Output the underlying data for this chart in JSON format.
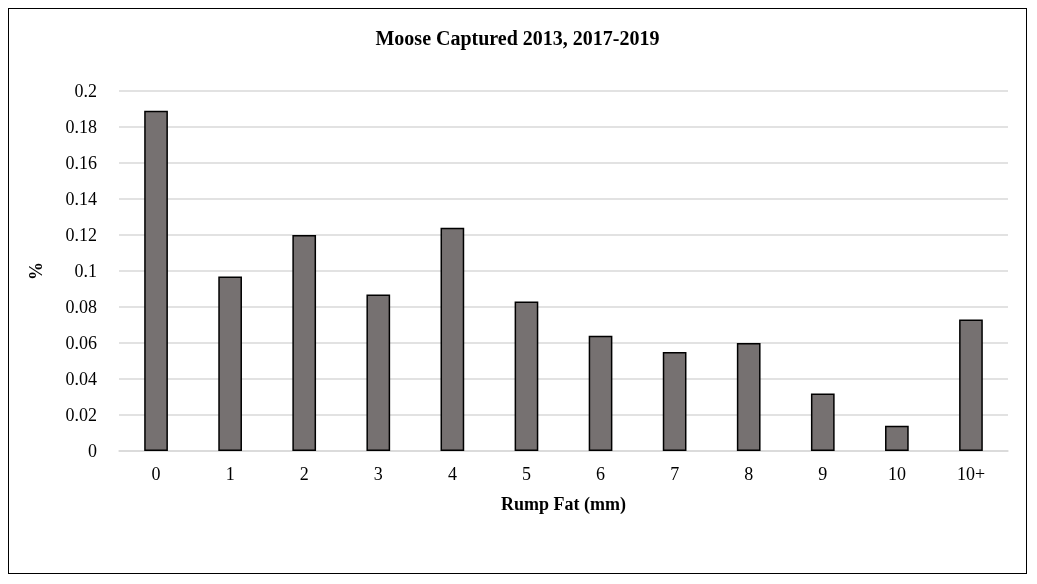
{
  "chart_data": {
    "type": "bar",
    "title": "Moose Captured 2013, 2017-2019",
    "xlabel": "Rump Fat (mm)",
    "ylabel": "%",
    "categories": [
      "0",
      "1",
      "2",
      "3",
      "4",
      "5",
      "6",
      "7",
      "8",
      "9",
      "10",
      "10+"
    ],
    "values": [
      0.189,
      0.097,
      0.12,
      0.087,
      0.124,
      0.083,
      0.064,
      0.055,
      0.06,
      0.032,
      0.014,
      0.073
    ],
    "color": "#767171",
    "ylim": [
      0,
      0.2
    ],
    "yticks": [
      0,
      0.02,
      0.04,
      0.06,
      0.08,
      0.1,
      0.12,
      0.14,
      0.16,
      0.18,
      0.2
    ],
    "grid": "y"
  }
}
